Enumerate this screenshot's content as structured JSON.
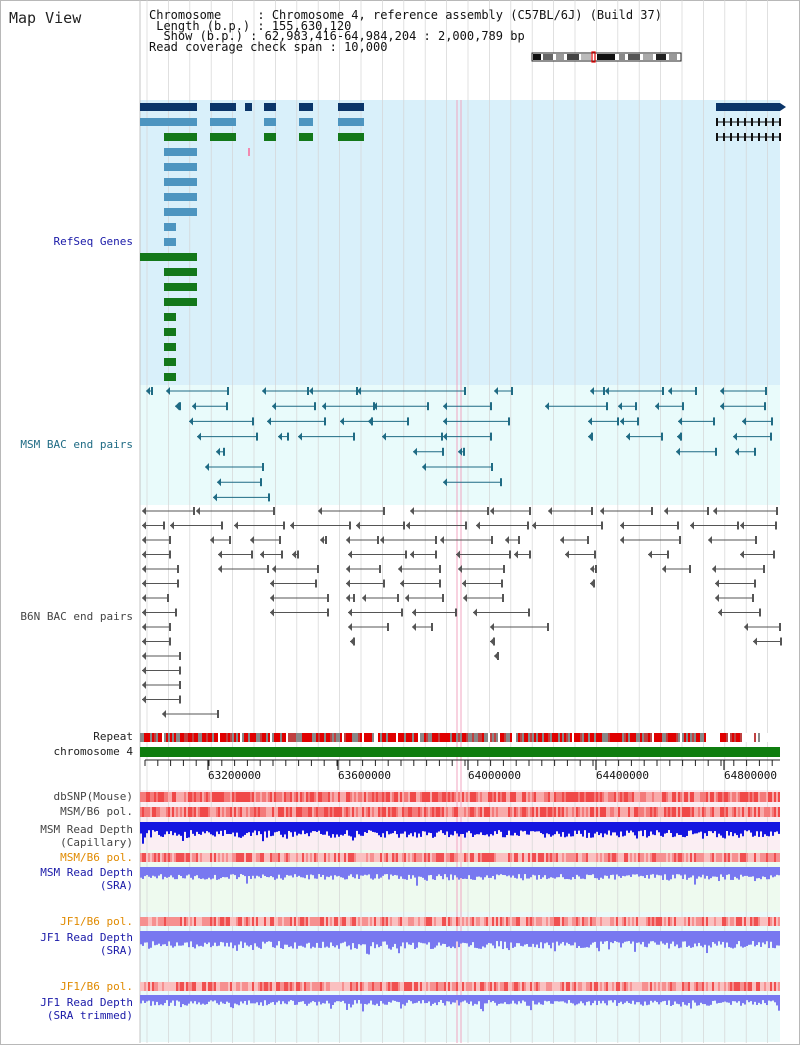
{
  "page_title": "Map View",
  "info": {
    "chromosome": "Chromosome     : Chromosome 4, reference assembly (C57BL/6J) (Build 37)",
    "length": " Length (b.p.) : 155,630,120",
    "show": "  Show (b.p.) : 62,983,416-64,984,204 : 2,000,789 bp",
    "coverage": "Read coverage check span : 10,000"
  },
  "tracks": {
    "refseq": "RefSeq Genes",
    "msm_bac": "MSM BAC end pairs",
    "b6n_bac": "B6N BAC end pairs",
    "repeat": "Repeat",
    "chromosome": "chromosome 4",
    "dbsnp": "dbSNP(Mouse)",
    "msm_b6_pol_1": "MSM/B6 pol.",
    "msm_read_depth_cap": "MSM Read Depth\n(Capillary)",
    "msm_b6_pol_2": "MSM/B6 pol.",
    "msm_read_depth_sra": "MSM Read Depth\n(SRA)",
    "jf1_b6_pol_1": "JF1/B6 pol.",
    "jf1_read_depth_sra": "JF1 Read Depth\n(SRA)",
    "jf1_b6_pol_2": "JF1/B6 pol.",
    "jf1_read_depth_trim": "JF1 Read Depth\n(SRA trimmed)"
  },
  "axis": {
    "ticks": [
      "63200000",
      "63600000",
      "64000000",
      "64400000",
      "64800000"
    ]
  },
  "colors": {
    "refseq_bg": "#d9f0fa",
    "bac_bg": "#e9fbfb",
    "gene_dark": "#0b3569",
    "gene_light": "#4d95c0",
    "gene_green": "#13781a",
    "msm_pair": "#1f6b84",
    "b6n_pair": "#555555",
    "chrom_bar": "#0f7d0f",
    "snp_red": "#e84545",
    "depth_blue": "#1515e0",
    "depth_sra": "#7878f0"
  }
}
